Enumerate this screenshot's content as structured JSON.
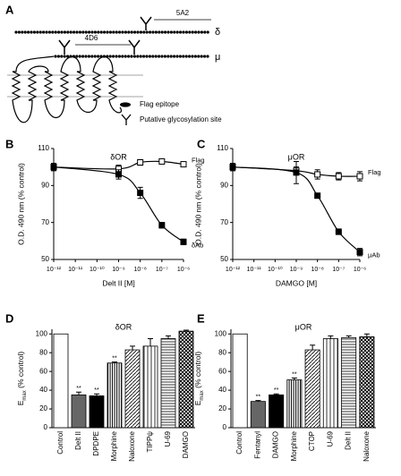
{
  "diagram": {
    "label": "A",
    "delta_antibody": "5A2",
    "delta": "δ",
    "mu_antibody": "4D6",
    "mu": "μ",
    "legend": [
      "Flag epitope",
      "Putative glycosylation site"
    ]
  },
  "chart_data": [
    {
      "type": "line",
      "panel": "B",
      "title": "δOR",
      "xlabel": "Delt II [M]",
      "ylabel": "O.D. 490 nm (% control)",
      "xscale": "log",
      "xlim": [
        1e-12,
        1e-06
      ],
      "xticks": [
        {
          "value": 1e-12,
          "label": "10⁻¹²"
        },
        {
          "value": 1e-11,
          "label": "10⁻¹¹"
        },
        {
          "value": 1e-10,
          "label": "10⁻¹⁰"
        },
        {
          "value": 1e-09,
          "label": "10⁻⁹"
        },
        {
          "value": 1e-08,
          "label": "10⁻⁸"
        },
        {
          "value": 1e-07,
          "label": "10⁻⁷"
        },
        {
          "value": 1e-06,
          "label": "10⁻⁶"
        }
      ],
      "ylim": [
        50,
        110
      ],
      "yticks": [
        50,
        70,
        90,
        110
      ],
      "series": [
        {
          "name": "Flag",
          "marker": "open-square",
          "color": "#000000",
          "x": [
            1e-12,
            1e-09,
            1e-08,
            1e-07,
            1e-06
          ],
          "values": [
            100,
            99,
            102.5,
            103,
            101.5
          ],
          "errors": [
            2,
            2,
            1.5,
            1,
            1
          ]
        },
        {
          "name": "δAb",
          "marker": "filled-square",
          "color": "#000000",
          "x": [
            1e-12,
            1e-09,
            1e-08,
            1e-07,
            1e-06
          ],
          "values": [
            100,
            96,
            86,
            68.5,
            59.5
          ],
          "errors": [
            2,
            2.5,
            3,
            1.5,
            1.5
          ]
        }
      ]
    },
    {
      "type": "line",
      "panel": "C",
      "title": "μOR",
      "xlabel": "DAMGO [M]",
      "ylabel": "O.D. 490 nm (% control)",
      "xscale": "log",
      "xlim": [
        1e-12,
        1e-06
      ],
      "xticks": [
        {
          "value": 1e-12,
          "label": "10⁻¹²"
        },
        {
          "value": 1e-11,
          "label": "10⁻¹¹"
        },
        {
          "value": 1e-10,
          "label": "10⁻¹⁰"
        },
        {
          "value": 1e-09,
          "label": "10⁻⁹"
        },
        {
          "value": 1e-08,
          "label": "10⁻⁸"
        },
        {
          "value": 1e-07,
          "label": "10⁻⁷"
        },
        {
          "value": 1e-06,
          "label": "10⁻⁶"
        }
      ],
      "ylim": [
        50,
        110
      ],
      "yticks": [
        50,
        70,
        90,
        110
      ],
      "series": [
        {
          "name": "Flag",
          "marker": "open-square",
          "color": "#000000",
          "x": [
            1e-12,
            1e-09,
            1e-08,
            1e-07,
            1e-06
          ],
          "values": [
            100,
            98,
            96,
            95,
            95
          ],
          "errors": [
            2,
            2,
            2.5,
            2,
            2.5
          ]
        },
        {
          "name": "μAb",
          "marker": "filled-square",
          "color": "#000000",
          "x": [
            1e-12,
            1e-09,
            1e-08,
            1e-07,
            1e-06
          ],
          "values": [
            100,
            97,
            84.5,
            65,
            54
          ],
          "errors": [
            2,
            6,
            1,
            1.5,
            2
          ]
        }
      ]
    },
    {
      "type": "bar",
      "panel": "D",
      "title": "δOR",
      "ylabel": [
        "E",
        "max",
        " (% control)"
      ],
      "categories": [
        "Control",
        "Delt II",
        "DPDPE",
        "Morphine",
        "Naloxone",
        "TIPPψ",
        "U-69",
        "DAMGO"
      ],
      "values": [
        100,
        35,
        34,
        69,
        83,
        87,
        95,
        103
      ],
      "errors": [
        0,
        3,
        2,
        1,
        4,
        8,
        3,
        1
      ],
      "significance": [
        null,
        "**",
        "**",
        "**",
        null,
        null,
        null,
        null
      ],
      "bar_styles": [
        "white",
        "gray",
        "black",
        "vstripe",
        "dstripe",
        "vstripe-wide",
        "hstripe",
        "checker"
      ],
      "ylim": [
        0,
        105
      ],
      "yticks": [
        0,
        20,
        40,
        60,
        80,
        100
      ]
    },
    {
      "type": "bar",
      "panel": "E",
      "title": "μOR",
      "ylabel": [
        "E",
        "max",
        " (% control)"
      ],
      "categories": [
        "Control",
        "Fentanyl",
        "DAMGO",
        "Morphine",
        "CTOP",
        "U-69",
        "Delt II",
        "Naloxone"
      ],
      "values": [
        100,
        28,
        35,
        51,
        83,
        95,
        96,
        97
      ],
      "errors": [
        0,
        1,
        1,
        2,
        5,
        3,
        2,
        3
      ],
      "significance": [
        null,
        "**",
        "**",
        "**",
        null,
        null,
        null,
        null
      ],
      "bar_styles": [
        "white",
        "gray",
        "black",
        "vstripe",
        "dstripe",
        "vstripe-wide",
        "hstripe",
        "checker"
      ],
      "ylim": [
        0,
        105
      ],
      "yticks": [
        0,
        20,
        40,
        60,
        80,
        100
      ]
    }
  ]
}
